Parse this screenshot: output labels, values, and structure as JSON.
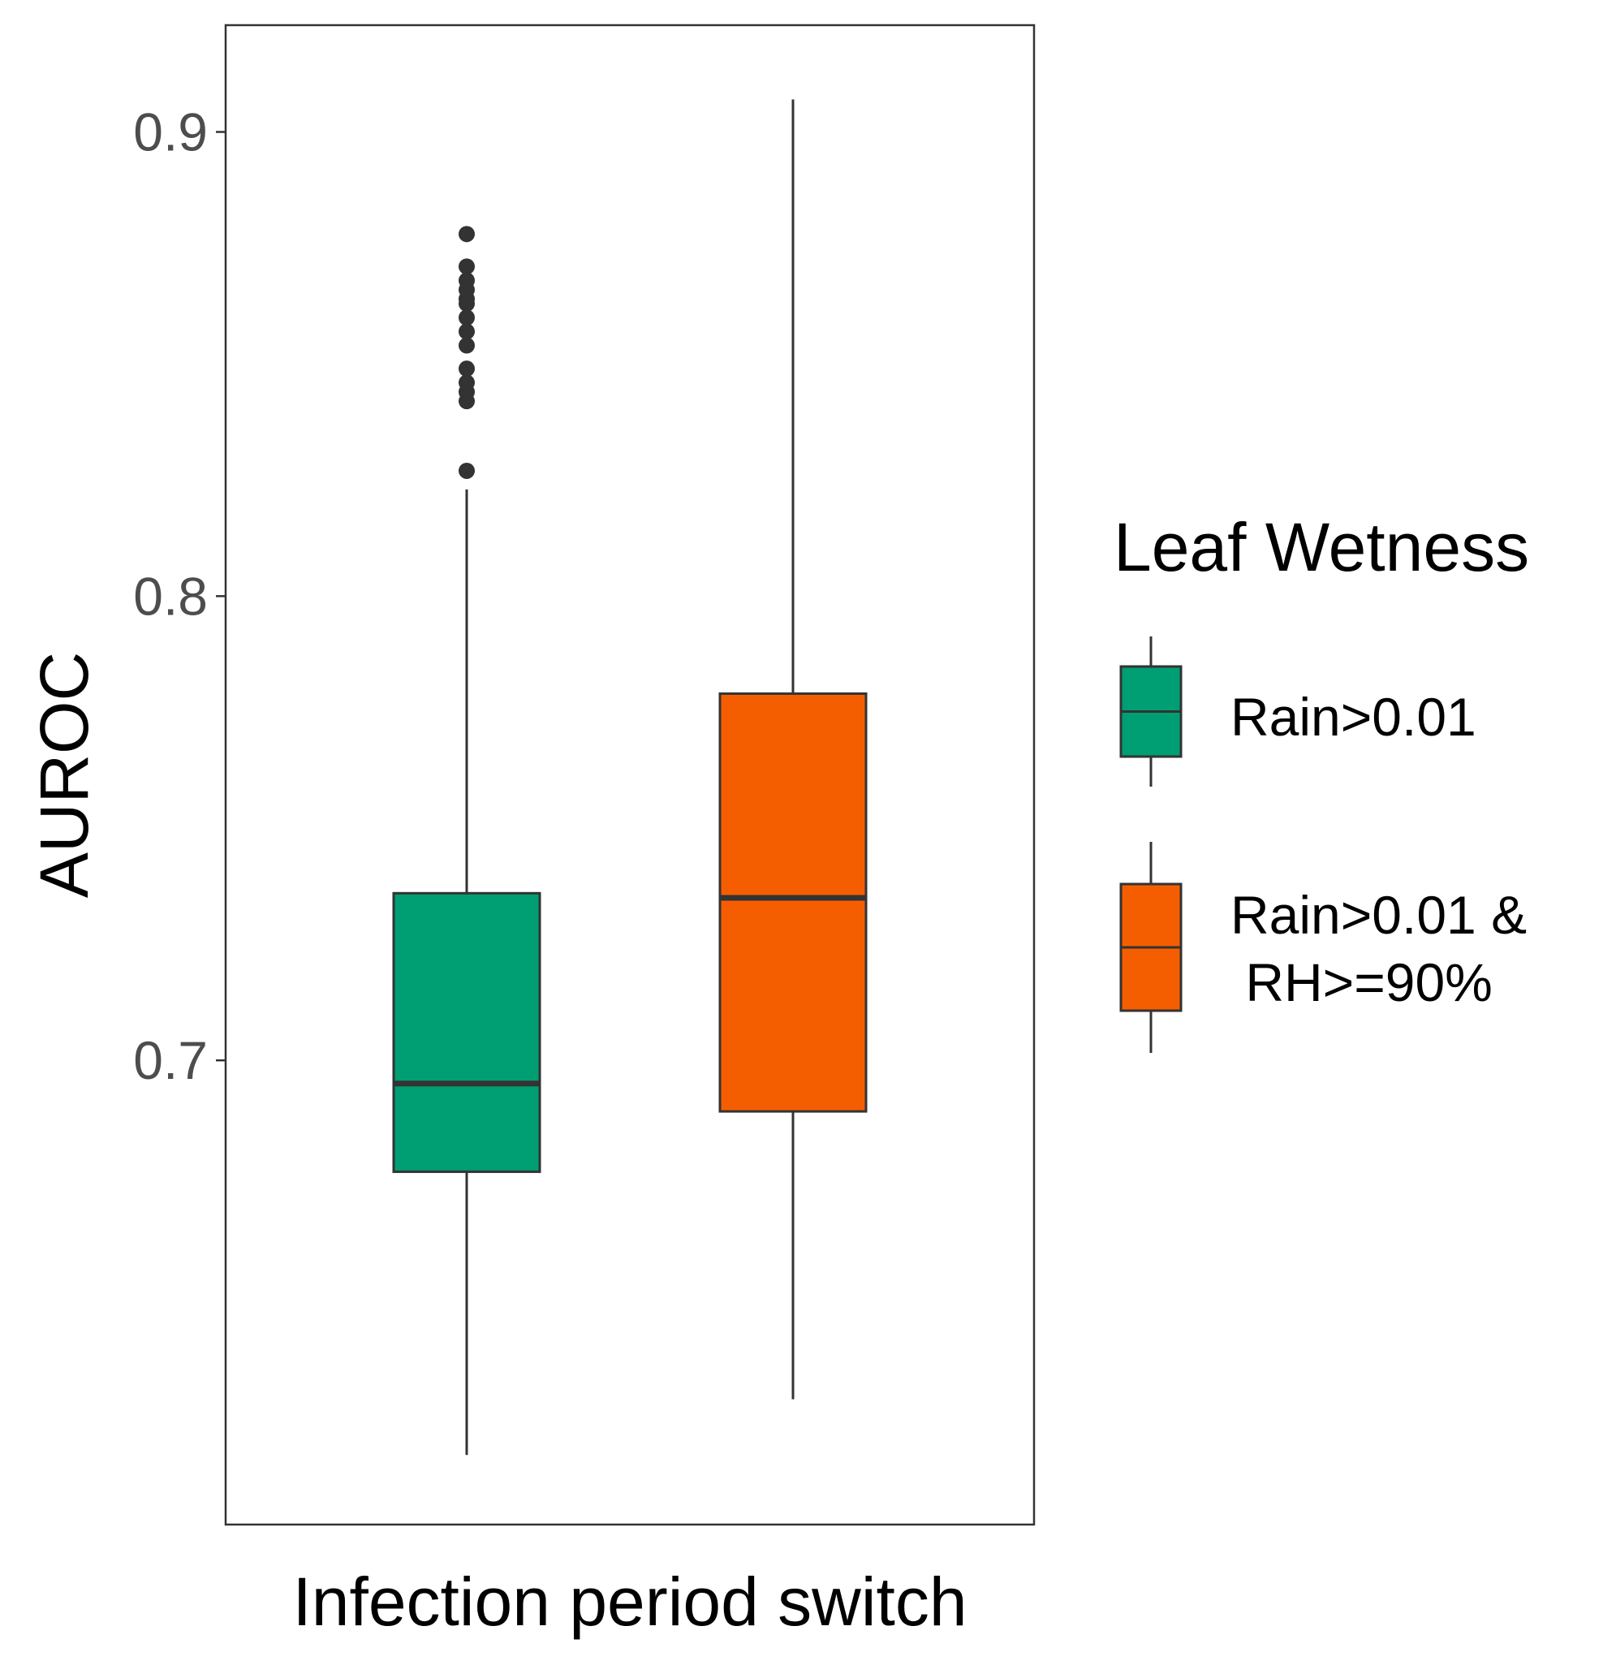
{
  "chart_data": {
    "type": "box",
    "xlabel": "Infection period switch",
    "ylabel": "AUROC",
    "ylim": [
      0.6,
      0.923
    ],
    "yticks": [
      0.7,
      0.8,
      0.9
    ],
    "ytick_labels": [
      "0.7",
      "0.8",
      "0.9"
    ],
    "grid": false,
    "legend": {
      "title": "Leaf Wetness",
      "placement": "right",
      "entries": [
        {
          "lines": [
            "Rain>0.01"
          ],
          "color": "#009E73"
        },
        {
          "lines": [
            "Rain>0.01 &",
            " RH>=90%"
          ],
          "color": "#F55E00"
        }
      ]
    },
    "series": [
      {
        "name": "Rain>0.01",
        "color": "#009E73",
        "whisker_low": 0.615,
        "q1": 0.676,
        "median": 0.695,
        "q3": 0.736,
        "whisker_high": 0.823,
        "outliers": [
          0.827,
          0.842,
          0.844,
          0.846,
          0.849,
          0.854,
          0.857,
          0.86,
          0.863,
          0.864,
          0.866,
          0.868,
          0.871,
          0.878
        ]
      },
      {
        "name": "Rain>0.01 & RH>=90%",
        "color": "#F55E00",
        "whisker_low": 0.627,
        "q1": 0.689,
        "median": 0.735,
        "q3": 0.779,
        "whisker_high": 0.907,
        "outliers": []
      }
    ]
  }
}
